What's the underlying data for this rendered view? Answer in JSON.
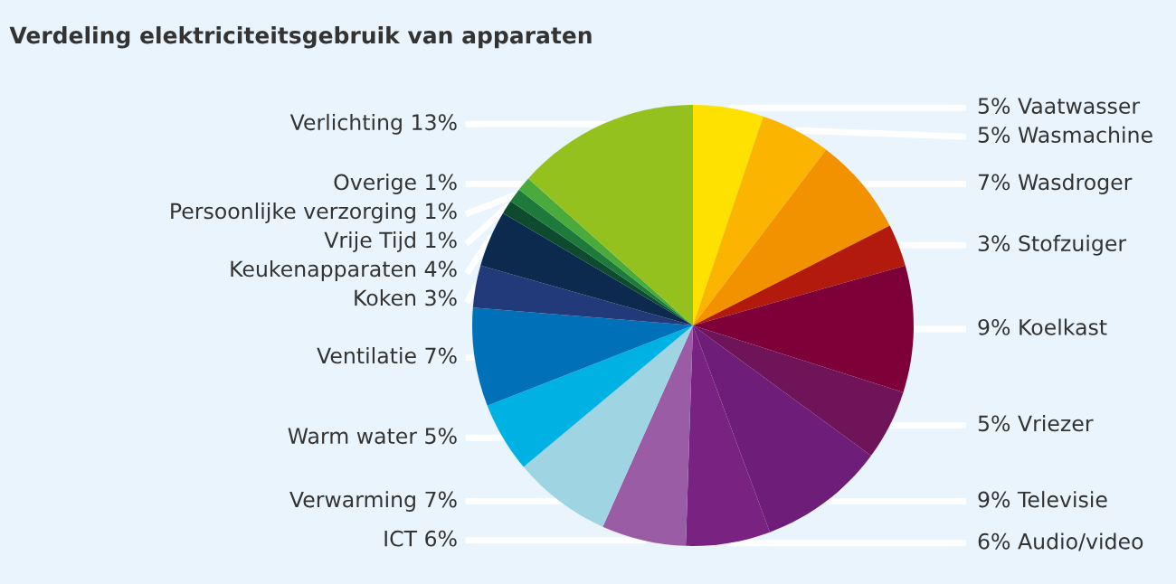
{
  "chart_data": {
    "type": "pie",
    "title": "Verdeling elektriciteitsgebruik van apparaten",
    "categories": [
      "Vaatwasser",
      "Wasmachine",
      "Wasdroger",
      "Stofzuiger",
      "Koelkast",
      "Vriezer",
      "Televisie",
      "Audio/video",
      "ICT",
      "Verwarming",
      "Warm water",
      "Ventilatie",
      "Koken",
      "Keukenapparaten",
      "Vrije Tijd",
      "Persoonlijke verzorging",
      "Overige",
      "Verlichting"
    ],
    "values": [
      5,
      5,
      7,
      3,
      9,
      5,
      9,
      6,
      6,
      7,
      5,
      7,
      3,
      4,
      1,
      1,
      1,
      13
    ],
    "value_labels": [
      "5%",
      "5%",
      "7%",
      "3%",
      "9%",
      "5%",
      "9%",
      "6%",
      "6%",
      "7%",
      "5%",
      "7%",
      "3%",
      "4%",
      "1%",
      "1%",
      "1%",
      "13%"
    ],
    "colors": [
      "#ffe100",
      "#fbb400",
      "#f39200",
      "#b21a0e",
      "#7d0038",
      "#70145a",
      "#6e1d78",
      "#7a2282",
      "#9b5ca6",
      "#9fd4e3",
      "#00b2e3",
      "#0071b9",
      "#233a7a",
      "#0c2a4e",
      "#0d4a2e",
      "#1d7a3a",
      "#4aaa3c",
      "#95c11f"
    ]
  }
}
